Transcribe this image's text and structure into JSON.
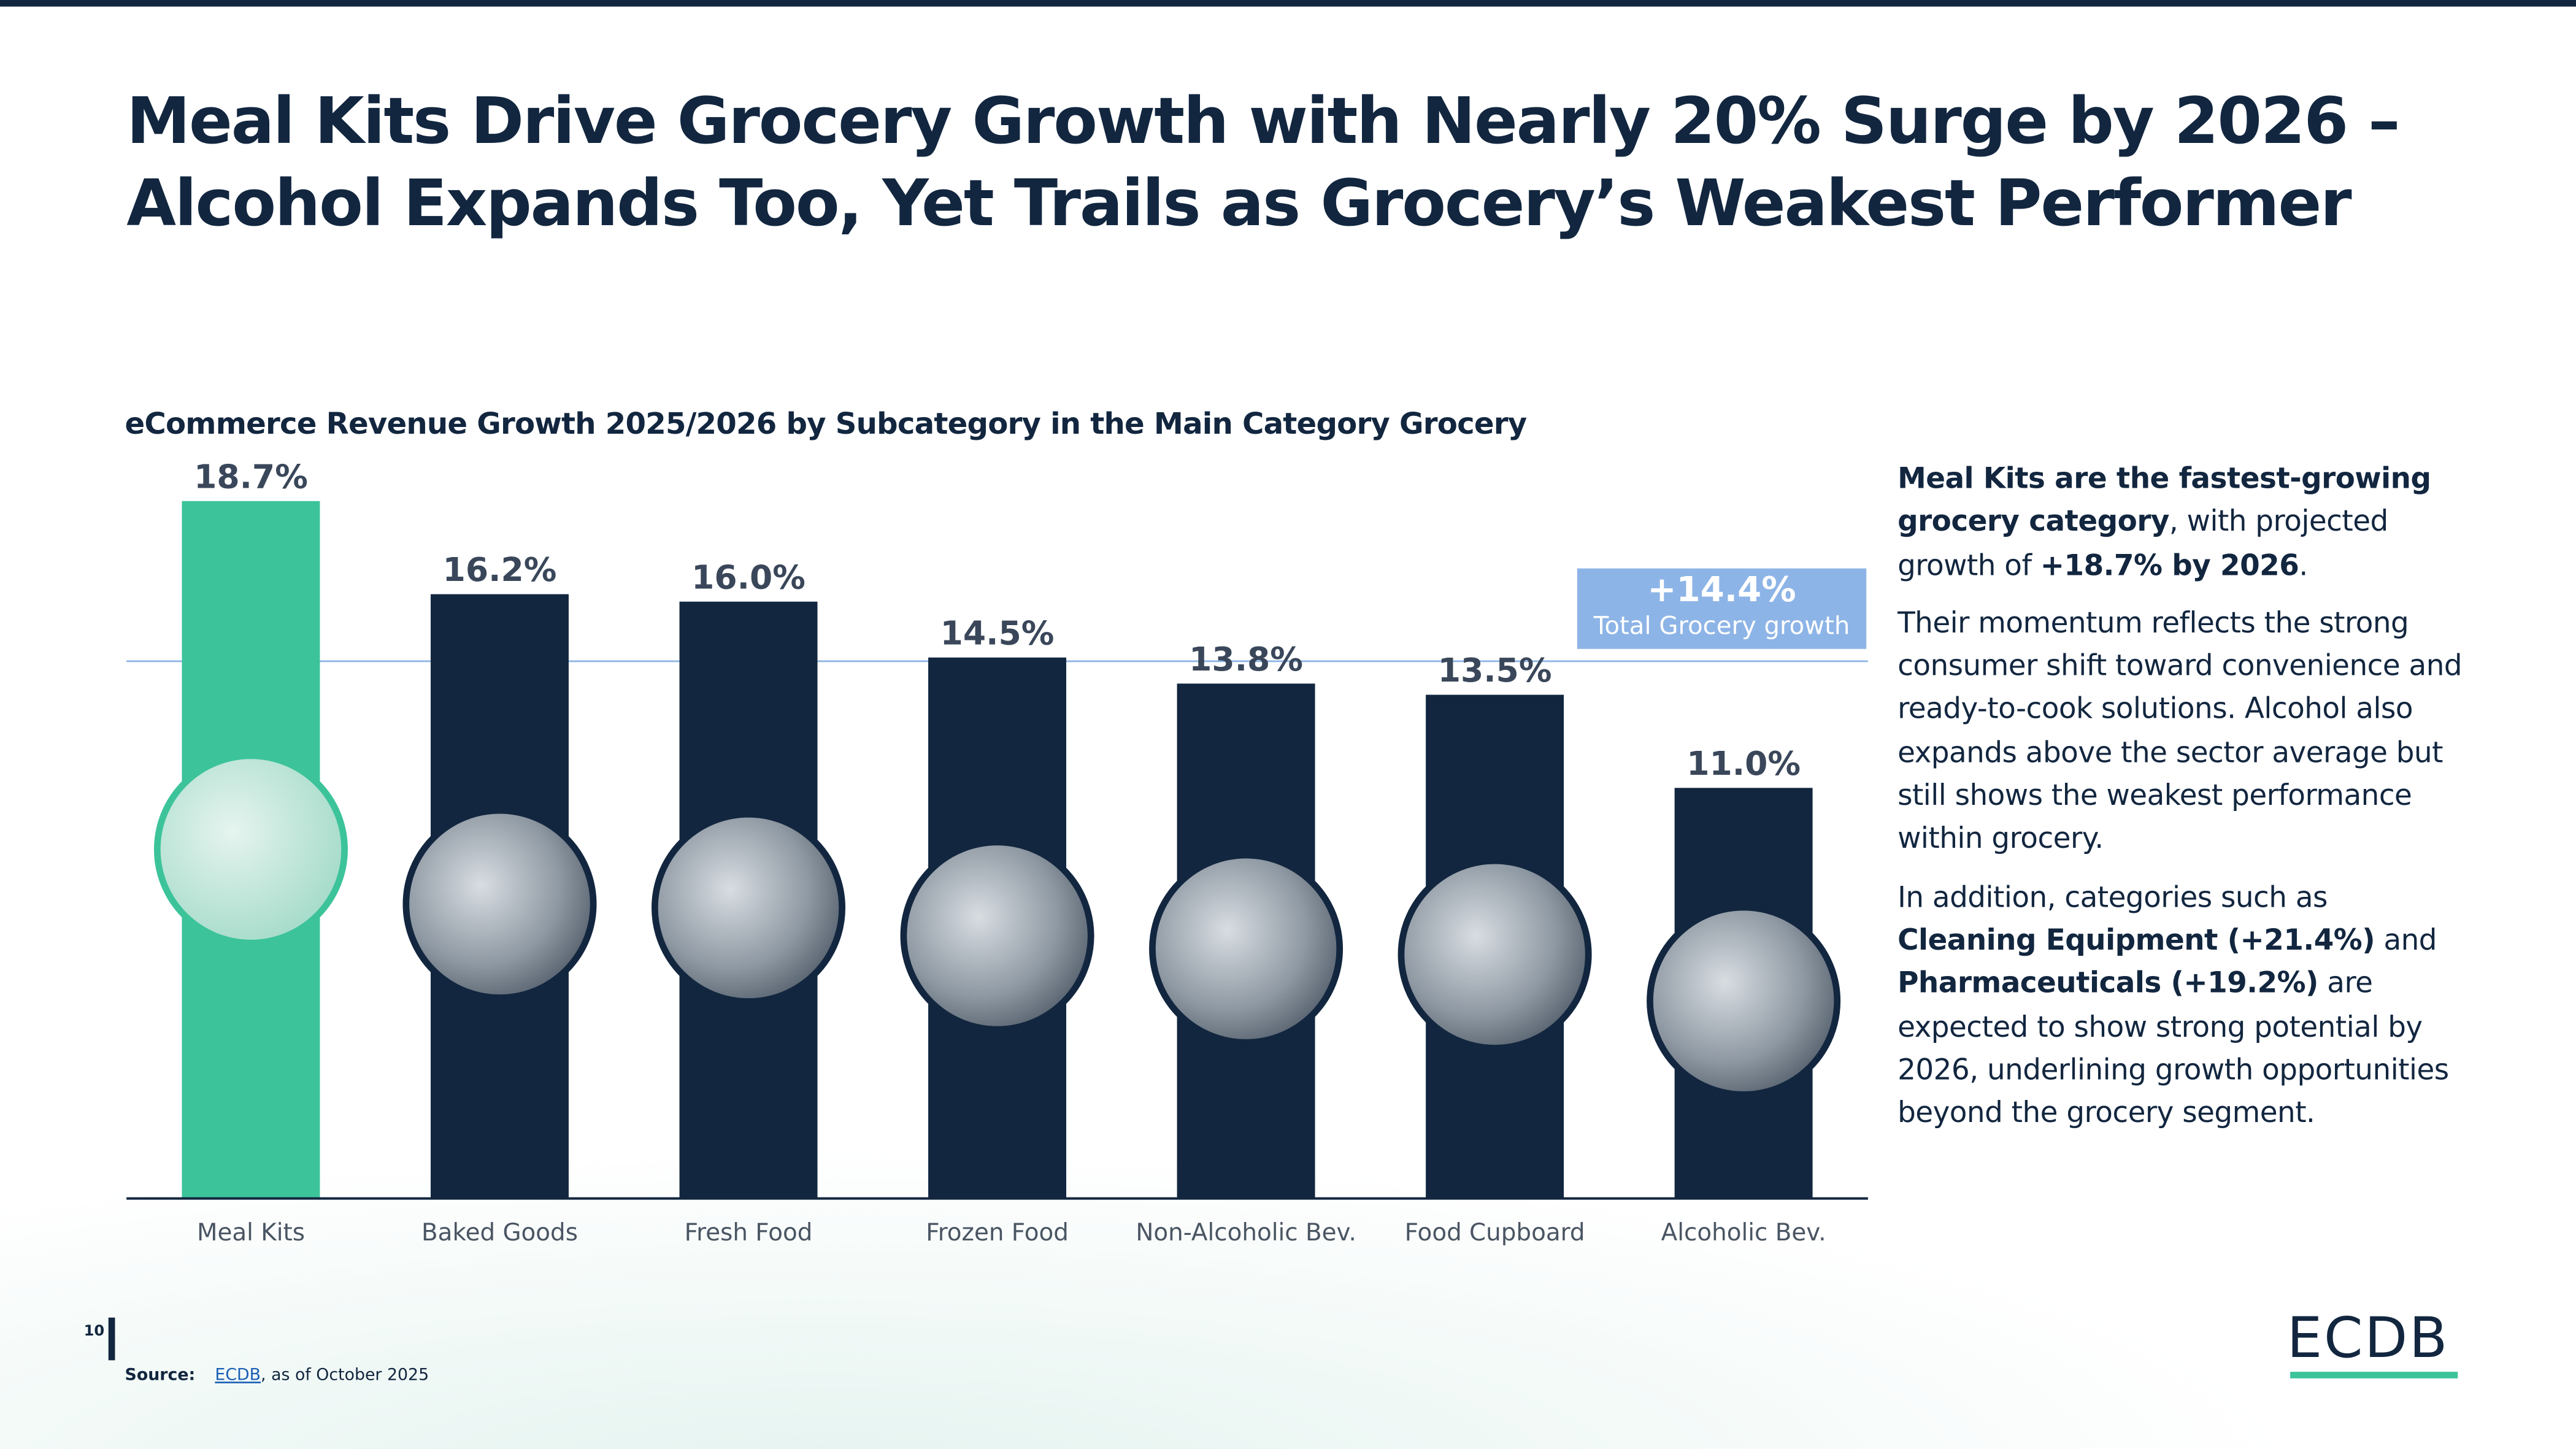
{
  "title": "Meal Kits Drive Grocery Growth with Nearly 20% Surge by 2026 – Alcohol Expands Too, Yet Trails as Grocery’s Weakest Performer",
  "chart_data": {
    "type": "bar",
    "title": "eCommerce Revenue Growth 2025/2026 by Subcategory in the Main Category Grocery",
    "categories": [
      "Meal Kits",
      "Baked Goods",
      "Fresh Food",
      "Frozen Food",
      "Non-Alcoholic Bev.",
      "Food Cupboard",
      "Alcoholic Bev."
    ],
    "values": [
      18.7,
      16.2,
      16.0,
      14.5,
      13.8,
      13.5,
      11.0
    ],
    "value_labels": [
      "18.7%",
      "16.2%",
      "16.0%",
      "14.5%",
      "13.8%",
      "13.5%",
      "11.0%"
    ],
    "unit": "%",
    "ylim": [
      0,
      18.7
    ],
    "reference_line": {
      "value": 14.4,
      "label_value": "+14.4%",
      "label": "Total Grocery growth"
    },
    "colors": {
      "highlight": "#3cc39a",
      "default": "#12263f",
      "reference": "#8db4e6"
    },
    "grid": false
  },
  "side_text": {
    "p1": [
      {
        "t": "Meal Kits are the fastest-growing grocery category",
        "b": true
      },
      {
        "t": ", with projected growth of ",
        "b": false
      },
      {
        "t": "+18.7% by 2026",
        "b": true
      },
      {
        "t": ".",
        "b": false
      }
    ],
    "p2": [
      {
        "t": "Their momentum reflects the strong consumer shift toward convenience and ready-to-cook solutions. Alcohol also expands above the sector average but still shows the weakest performance within grocery.",
        "b": false
      }
    ],
    "p3": [
      {
        "t": "In addition, categories such as ",
        "b": false
      },
      {
        "t": "Cleaning Equipment (+21.4%)",
        "b": true
      },
      {
        "t": " and ",
        "b": false
      },
      {
        "t": "Pharmaceuticals (+19.2%)",
        "b": true
      },
      {
        "t": " are expected to show strong potential by 2026, underlining growth opportunities beyond the grocery segment.",
        "b": false
      }
    ]
  },
  "footer": {
    "page": "10",
    "source_label": "Source:",
    "source_link": "ECDB",
    "source_rest": ", as of October 2025",
    "logo": "ECDB"
  }
}
